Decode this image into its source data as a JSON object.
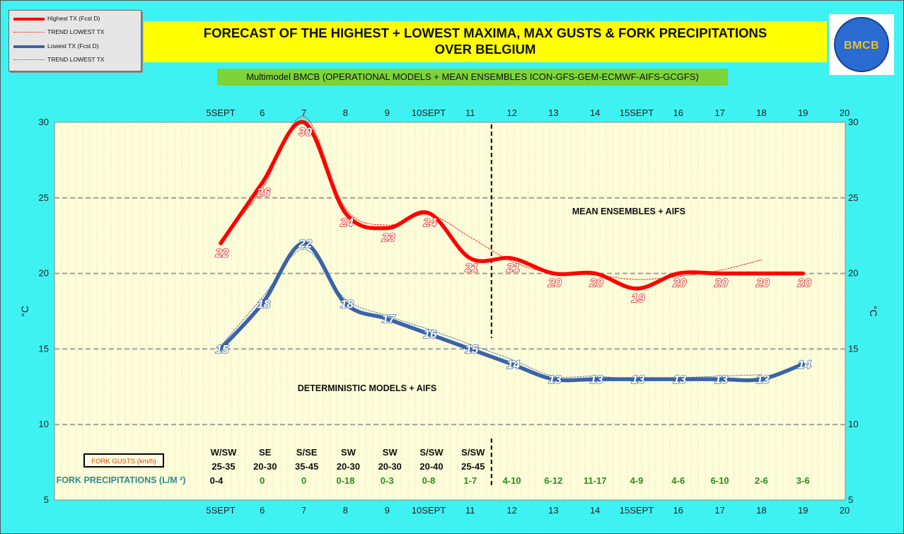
{
  "legend": {
    "items": [
      {
        "label": "Highest TX (Fcst D)",
        "color": "#ff0000",
        "style": "thick"
      },
      {
        "label": "TREND LOWEST  TX",
        "color": "#ff0000",
        "style": "dotted"
      },
      {
        "label": "Lowest TX (Fcst D)",
        "color": "#3a63a8",
        "style": "thick"
      },
      {
        "label": "TREND LOWEST TX",
        "color": "#3a63a8",
        "style": "dotted"
      }
    ]
  },
  "title_line1": "FORECAST OF THE HIGHEST + LOWEST MAXIMA, MAX GUSTS & FORK PRECIPITATIONS",
  "title_line2": "OVER BELGIUM",
  "subtitle": "Multimodel BMCB (OPERATIONAL MODELS + MEAN ENSEMBLES  ICON-GFS-GEM-ECMWF-AIFS-GCGFS)",
  "logo_text": "BMCB",
  "chart_data": {
    "type": "line",
    "x_labels": [
      "5SEPT",
      "6",
      "7",
      "8",
      "9",
      "10SEPT",
      "11",
      "12",
      "13",
      "14",
      "15SEPT",
      "16",
      "17",
      "18",
      "19",
      "20"
    ],
    "ylabel": "°C",
    "ylim": [
      5,
      30
    ],
    "yticks": [
      5,
      10,
      15,
      20,
      25,
      30
    ],
    "grid": true,
    "series": [
      {
        "name": "Highest TX (Fcst D)",
        "color": "#ff0000",
        "values": [
          22,
          26,
          30,
          24,
          23,
          24,
          21,
          21,
          20,
          20,
          19,
          20,
          20,
          20,
          20
        ]
      },
      {
        "name": "TREND LOWEST  TX",
        "color": "#ff0000",
        "values": [
          22.2,
          25.6,
          30.4,
          24.3,
          23.2,
          23.9,
          22.4,
          20.8,
          20.0,
          19.9,
          19.6,
          19.8,
          20.2,
          20.9
        ]
      },
      {
        "name": "Lowest TX (Fcst D)",
        "color": "#3a63a8",
        "values": [
          15,
          18,
          22,
          18,
          17,
          16,
          15,
          14,
          13,
          13,
          13,
          13,
          13,
          13,
          14
        ]
      },
      {
        "name": "TREND LOWEST TX",
        "color": "#3a63a8",
        "values": [
          15.2,
          18.4,
          21.6,
          18.3,
          17.2,
          16.3,
          15.3,
          14.3,
          13.2,
          13.2,
          13.0,
          13.1,
          13.2,
          13.3
        ]
      }
    ],
    "split_after": "11",
    "annotations": {
      "upper": "MEAN ENSEMBLES + AIFS",
      "lower": "DETERMINISTIC MODELS + AIFS"
    },
    "gusts_label": "FORK GUSTS (km/h)",
    "gust_dirs": [
      "W/SW",
      "SE",
      "S/SE",
      "SW",
      "SW",
      "S/SW",
      "S/SW"
    ],
    "gust_speeds": [
      "25-35",
      "20-30",
      "35-45",
      "20-30",
      "20-30",
      "20-40",
      "25-45"
    ],
    "precip_label": "FORK PRECIPITATIONS (L/M ²)",
    "precip": [
      "0-4",
      "0",
      "0",
      "0-18",
      "0-3",
      "0-8",
      "1-7",
      "4-10",
      "6-12",
      "11-17",
      "4-9",
      "4-6",
      "6-10",
      "2-6",
      "3-6"
    ]
  }
}
